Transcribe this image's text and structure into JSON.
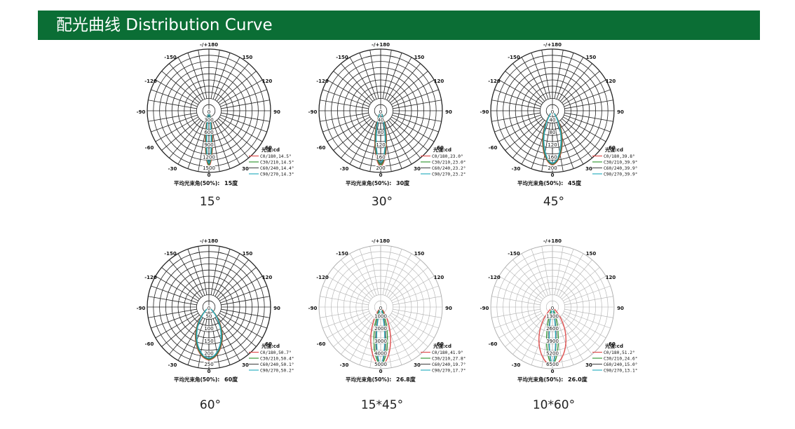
{
  "header": {
    "title": "配光曲线  Distribution Curve"
  },
  "common": {
    "angle_labels": {
      "top": "-/+180",
      "tl150": "-150",
      "tr150": "150",
      "l120": "-120",
      "r120": "120",
      "l90": "-90",
      "r90": "90",
      "l60": "-60",
      "r60": "60",
      "l30": "-30",
      "r30": "30",
      "bottom": "0"
    },
    "intensity_unit": "光强:cd",
    "beam_angle_label": "平均光束角(50%):"
  },
  "colors": {
    "header_bg": "#0b6e35",
    "c0": "#e05050",
    "c30": "#3a9a3a",
    "c60": "#555555",
    "c90": "#30b0c0"
  },
  "charts": [
    {
      "caption": "15°",
      "beam_value": "15度",
      "rings": [
        "0",
        "300",
        "600",
        "900",
        "1200",
        "1500"
      ],
      "legend": [
        "C0/180,14.5°",
        "C30/210,14.5°",
        "C60/240,14.4°",
        "C90/270,14.3°"
      ],
      "style": "dark",
      "curves": [
        {
          "w": 8,
          "d": 0.9
        },
        {
          "w": 7,
          "d": 0.88
        },
        {
          "w": 6,
          "d": 0.86
        },
        {
          "w": 5,
          "d": 0.85
        }
      ]
    },
    {
      "caption": "30°",
      "beam_value": "30度",
      "rings": [
        "0",
        "40",
        "80",
        "120",
        "160",
        "200"
      ],
      "legend": [
        "C0/180,23.0°",
        "C30/210,23.0°",
        "C60/240,23.2°",
        "C90/270,23.2°"
      ],
      "style": "dark",
      "curves": [
        {
          "w": 13,
          "d": 0.9
        },
        {
          "w": 12,
          "d": 0.88
        },
        {
          "w": 11,
          "d": 0.86
        },
        {
          "w": 10,
          "d": 0.84
        }
      ]
    },
    {
      "caption": "45°",
      "beam_value": "45度",
      "rings": [
        "0",
        "40",
        "80",
        "120",
        "160",
        "200"
      ],
      "legend": [
        "C0/180,39.8°",
        "C30/210,39.9°",
        "C60/240,39.9°",
        "C90/270,39.9°"
      ],
      "style": "dark",
      "curves": [
        {
          "w": 22,
          "d": 0.88
        },
        {
          "w": 21,
          "d": 0.87
        },
        {
          "w": 20,
          "d": 0.86
        },
        {
          "w": 19,
          "d": 0.85
        }
      ]
    },
    {
      "caption": "60°",
      "beam_value": "60度",
      "rings": [
        "0",
        "50",
        "100",
        "150",
        "200",
        "250"
      ],
      "legend": [
        "C0/180,50.7°",
        "C30/210,50.4°",
        "C60/240,50.1°",
        "C90/270,50.2°"
      ],
      "style": "dark",
      "curves": [
        {
          "w": 30,
          "d": 0.86
        },
        {
          "w": 29,
          "d": 0.85
        },
        {
          "w": 28,
          "d": 0.84
        },
        {
          "w": 27,
          "d": 0.83
        }
      ]
    },
    {
      "caption": "15*45°",
      "beam_value": "26.8度",
      "rings": [
        "0",
        "1000",
        "2000",
        "3000",
        "4000",
        "5000"
      ],
      "legend": [
        "C0/180,41.9°",
        "C30/210,27.8°",
        "C60/240,19.7°",
        "C90/270,17.7°"
      ],
      "style": "light",
      "curves": [
        {
          "w": 22,
          "d": 0.95
        },
        {
          "w": 15,
          "d": 0.93
        },
        {
          "w": 11,
          "d": 0.92
        },
        {
          "w": 9,
          "d": 0.92
        }
      ]
    },
    {
      "caption": "10*60°",
      "beam_value": "26.0度",
      "rings": [
        "0",
        "1300",
        "2600",
        "3900",
        "5200",
        "6500"
      ],
      "legend": [
        "C0/180,51.2°",
        "C30/210,24.6°",
        "C60/240,15.0°",
        "C90/270,13.1°"
      ],
      "style": "light",
      "curves": [
        {
          "w": 30,
          "d": 0.95
        },
        {
          "w": 13,
          "d": 0.93
        },
        {
          "w": 8,
          "d": 0.92
        },
        {
          "w": 7,
          "d": 0.92
        }
      ]
    }
  ]
}
